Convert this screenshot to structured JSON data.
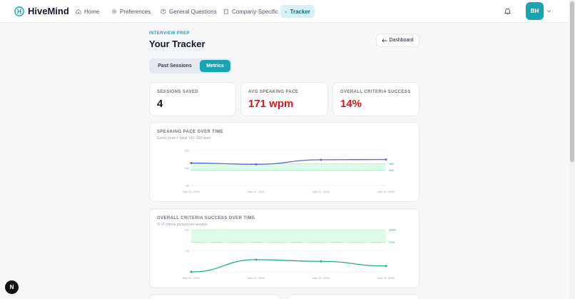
{
  "nav": {
    "brand": "HiveMind",
    "items": [
      {
        "label": "Home",
        "icon": "home-icon"
      },
      {
        "label": "Preferences",
        "icon": "gear-icon"
      },
      {
        "label": "General Questions",
        "icon": "help-circle-icon"
      },
      {
        "label": "Company-Specific",
        "icon": "building-icon"
      },
      {
        "label": "Tracker",
        "icon": "chart-icon",
        "active": true
      }
    ],
    "avatar_initials": "BH"
  },
  "header": {
    "eyebrow": "INTERVIEW PREP",
    "title": "Your Tracker",
    "dashboard_button": "Dashboard"
  },
  "tabs": {
    "past": "Past Sessions",
    "metrics": "Metrics",
    "active": "Metrics"
  },
  "stats": {
    "sessions": {
      "label": "SESSIONS SAVED",
      "value": "4"
    },
    "pace": {
      "label": "AVG SPEAKING PACE",
      "value": "171 wpm"
    },
    "criteria": {
      "label": "OVERALL CRITERIA SUCCESS",
      "value": "14%"
    }
  },
  "colors": {
    "accent": "#1aa3b0",
    "danger": "#d9151d",
    "pace_line": "#5b6dd4",
    "criteria_line": "#22b07d",
    "band": "#dcfce7"
  },
  "chart_data": [
    {
      "type": "line",
      "title": "SPEAKING PACE OVER TIME",
      "subtitle": "Green zone = ideal 130–160 wpm",
      "x": [
        "Mar 22, 2026",
        "Mar 22, 2026",
        "Mar 22, 2026",
        "Mar 22, 2026"
      ],
      "values": [
        163,
        157,
        178,
        179
      ],
      "ylim": [
        60,
        220
      ],
      "y_ticks": [
        "220",
        "140",
        "60"
      ],
      "band": {
        "low": 130,
        "high": 160,
        "low_label": "130",
        "high_label": "160"
      }
    },
    {
      "type": "line",
      "title": "OVERALL CRITERIA SUCCESS OVER TIME",
      "subtitle": "% of criteria passed per session",
      "x": [
        "Mar 22, 2026",
        "Mar 22, 2026",
        "Mar 22, 2026",
        "Mar 22, 2026"
      ],
      "values": [
        0,
        29,
        25,
        14
      ],
      "ylim": [
        0,
        100
      ],
      "y_ticks": [
        "100",
        "50"
      ],
      "band": {
        "low": 70,
        "high": 100,
        "low_label": "70%",
        "high_label": "100%"
      }
    }
  ]
}
